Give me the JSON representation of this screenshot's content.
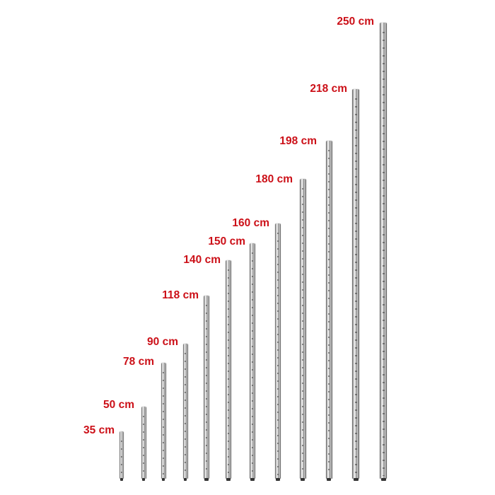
{
  "label_color": "#cc1018",
  "poles": [
    {
      "label": "35 cm"
    },
    {
      "label": "50 cm"
    },
    {
      "label": "78 cm"
    },
    {
      "label": "90 cm"
    },
    {
      "label": "118 cm"
    },
    {
      "label": "140 cm"
    },
    {
      "label": "150 cm"
    },
    {
      "label": "160 cm"
    },
    {
      "label": "180 cm"
    },
    {
      "label": "198 cm"
    },
    {
      "label": "218 cm"
    },
    {
      "label": "250 cm"
    }
  ]
}
